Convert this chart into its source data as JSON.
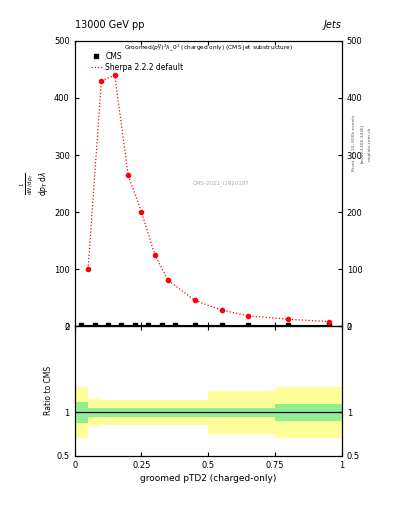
{
  "title_top": "13000 GeV pp",
  "title_right": "Jets",
  "cms_id": "CMS-2021_I1920187",
  "sherpa_x": [
    0.05,
    0.1,
    0.15,
    0.2,
    0.25,
    0.3,
    0.35,
    0.45,
    0.55,
    0.65,
    0.8,
    0.95
  ],
  "sherpa_y": [
    100,
    430,
    440,
    265,
    200,
    125,
    80,
    45,
    28,
    18,
    12,
    8
  ],
  "cms_x": [
    0.025,
    0.075,
    0.125,
    0.175,
    0.225,
    0.275,
    0.325,
    0.375,
    0.45,
    0.55,
    0.65,
    0.8,
    0.95
  ],
  "cms_y": [
    2,
    2,
    2,
    2,
    2,
    2,
    2,
    2,
    2,
    2,
    2,
    2,
    2
  ],
  "ratio_x_centers": [
    0.025,
    0.075,
    0.125,
    0.175,
    0.25,
    0.35,
    0.45,
    0.625,
    0.875
  ],
  "ratio_x_widths": [
    0.05,
    0.05,
    0.05,
    0.05,
    0.1,
    0.1,
    0.1,
    0.25,
    0.25
  ],
  "ratio_green_h": [
    0.24,
    0.1,
    0.1,
    0.1,
    0.1,
    0.1,
    0.1,
    0.1,
    0.2
  ],
  "ratio_yellow_h": [
    0.6,
    0.32,
    0.28,
    0.28,
    0.28,
    0.28,
    0.28,
    0.5,
    0.6
  ],
  "ylim_main": [
    0,
    500
  ],
  "ylim_ratio": [
    0.5,
    2.0
  ],
  "xlim": [
    0,
    1.0
  ],
  "green_color": "#90EE90",
  "yellow_color": "#FFFF99",
  "cms_color": "black",
  "sherpa_color": "red",
  "background_color": "white"
}
